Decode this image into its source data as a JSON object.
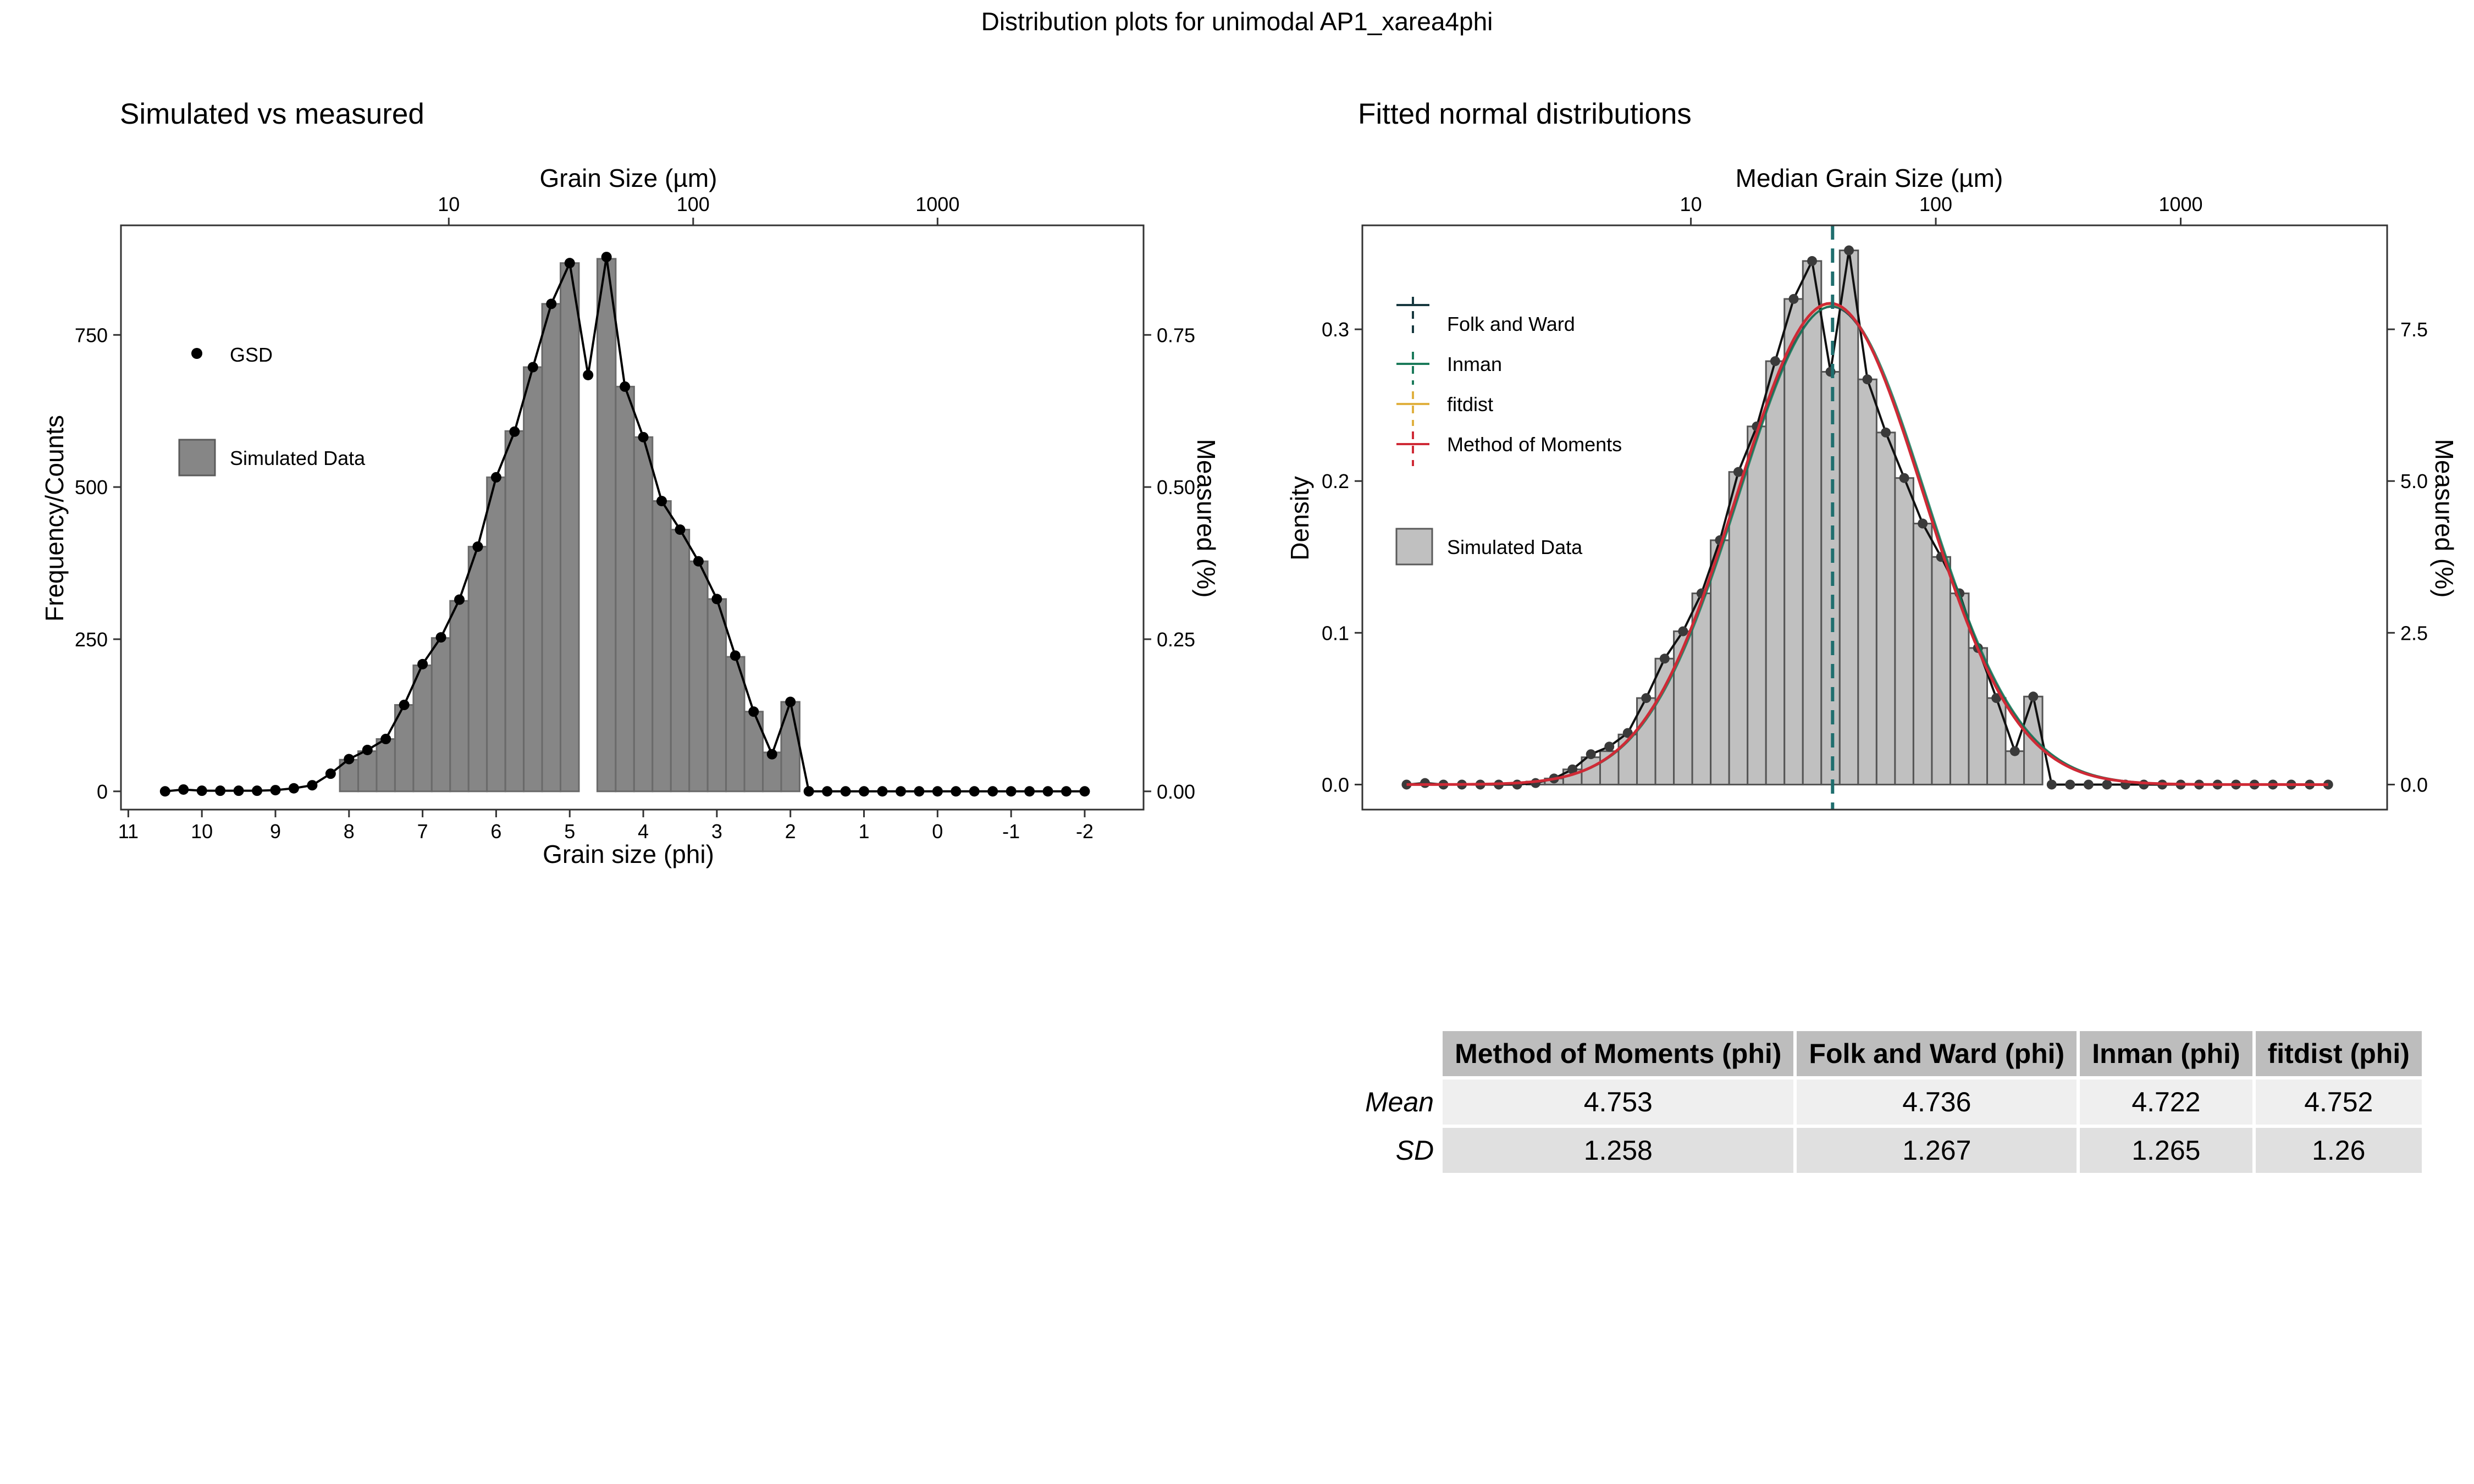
{
  "figure_title": "Distribution plots for unimodal AP1_xarea4phi",
  "chart_data": [
    {
      "type": "bar",
      "subtitle": "Simulated vs measured",
      "xlabel": "Grain size (phi)",
      "top_xlabel": "Grain Size (µm)",
      "ylabel": "Frequency/Counts",
      "right_ylabel": "Measured (%)",
      "x_axis_reversed": true,
      "xlim": [
        11.1,
        -2.8
      ],
      "ylim": [
        -30,
        930
      ],
      "right_ylim": [
        -0.03,
        0.93
      ],
      "x_ticks": [
        "11",
        "10",
        "9",
        "8",
        "7",
        "6",
        "5",
        "4",
        "3",
        "2",
        "1",
        "0",
        "-1",
        "-2"
      ],
      "top_ticks": [
        "10",
        "100",
        "1000"
      ],
      "y_ticks": [
        "0",
        "250",
        "500",
        "750"
      ],
      "right_ticks": [
        "0.00",
        "0.25",
        "0.50",
        "0.75"
      ],
      "legend": [
        {
          "label": "GSD",
          "symbol": "point"
        },
        {
          "label": "Simulated Data",
          "symbol": "box"
        }
      ],
      "bar_fill": "#868686",
      "bars": {
        "centers": [
          8.0,
          7.75,
          7.5,
          7.25,
          7.0,
          6.75,
          6.5,
          6.25,
          6.0,
          5.75,
          5.5,
          5.25,
          5.0,
          4.75,
          4.5,
          4.25,
          4.0,
          3.75,
          3.5,
          3.25,
          3.0,
          2.75,
          2.5,
          2.25,
          2.0
        ],
        "values": [
          52,
          66,
          86,
          142,
          207,
          252,
          313,
          402,
          516,
          592,
          697,
          801,
          868,
          0,
          875,
          665,
          582,
          477,
          430,
          378,
          316,
          221,
          131,
          64,
          147
        ]
      },
      "gsd_points": {
        "x": [
          10.5,
          10.25,
          10.0,
          9.75,
          9.5,
          9.25,
          9.0,
          8.75,
          8.5,
          8.25,
          8.0,
          7.75,
          7.5,
          7.25,
          7.0,
          6.75,
          6.5,
          6.25,
          6.0,
          5.75,
          5.5,
          5.25,
          5.0,
          4.75,
          4.5,
          4.25,
          4.0,
          3.75,
          3.5,
          3.25,
          3.0,
          2.75,
          2.5,
          2.25,
          2.0,
          1.75,
          1.5,
          1.25,
          1.0,
          0.75,
          0.5,
          0.25,
          0.0,
          -0.25,
          -0.5,
          -0.75,
          -1.0,
          -1.25,
          -1.5,
          -1.75,
          -2.0
        ],
        "y": [
          0,
          0.003,
          0.001,
          0.001,
          0.001,
          0.001,
          0.002,
          0.005,
          0.01,
          0.029,
          0.053,
          0.068,
          0.086,
          0.142,
          0.209,
          0.253,
          0.315,
          0.402,
          0.516,
          0.591,
          0.697,
          0.801,
          0.868,
          0.684,
          0.878,
          0.665,
          0.582,
          0.477,
          0.43,
          0.378,
          0.316,
          0.223,
          0.131,
          0.061,
          0.147,
          0,
          0,
          0,
          0,
          0,
          0,
          0,
          0,
          0,
          0,
          0,
          0,
          0,
          0,
          0,
          0
        ]
      }
    },
    {
      "type": "bar",
      "subtitle": "Fitted normal distributions",
      "top_xlabel": "Median Grain Size (µm)",
      "ylabel": "Density",
      "right_ylabel": "Measured (%)",
      "x_axis_reversed": true,
      "xlim": [
        11.1,
        -2.8
      ],
      "ylim": [
        -0.0165,
        0.3685
      ],
      "right_ylim": [
        -0.4125,
        9.2125
      ],
      "top_ticks": [
        "10",
        "100",
        "1000"
      ],
      "y_ticks": [
        "0.0",
        "0.1",
        "0.2",
        "0.3"
      ],
      "right_ticks": [
        "0.0",
        "2.5",
        "5.0",
        "7.5"
      ],
      "legend": [
        {
          "label": "Folk and Ward",
          "color": "#17383f"
        },
        {
          "label": "Inman",
          "color": "#1b7a5a"
        },
        {
          "label": "fitdist",
          "color": "#e0b040"
        },
        {
          "label": "Method of Moments",
          "color": "#cf2a36"
        },
        {
          "label": "Simulated Data",
          "symbol": "box"
        }
      ],
      "bar_fill": "#c0c0c0",
      "bars": {
        "centers": [
          8.75,
          8.5,
          8.25,
          8.0,
          7.75,
          7.5,
          7.25,
          7.0,
          6.75,
          6.5,
          6.25,
          6.0,
          5.75,
          5.5,
          5.25,
          5.0,
          4.75,
          4.5,
          4.25,
          4.0,
          3.75,
          3.5,
          3.25,
          3.0,
          2.75,
          2.5,
          2.25,
          2.0
        ],
        "values": [
          0.002,
          0.004,
          0.01,
          0.018,
          0.022,
          0.033,
          0.057,
          0.083,
          0.101,
          0.126,
          0.161,
          0.206,
          0.236,
          0.279,
          0.32,
          0.345,
          0.272,
          0.352,
          0.267,
          0.232,
          0.202,
          0.172,
          0.15,
          0.126,
          0.09,
          0.057,
          0.022,
          0.058
        ]
      },
      "gsd_points": {
        "x": [
          10.5,
          10.25,
          10.0,
          9.75,
          9.5,
          9.25,
          9.0,
          8.75,
          8.5,
          8.25,
          8.0,
          7.75,
          7.5,
          7.25,
          7.0,
          6.75,
          6.5,
          6.25,
          6.0,
          5.75,
          5.5,
          5.25,
          5.0,
          4.75,
          4.5,
          4.25,
          4.0,
          3.75,
          3.5,
          3.25,
          3.0,
          2.75,
          2.5,
          2.25,
          2.0,
          1.75,
          1.5,
          1.25,
          1.0,
          0.75,
          0.5,
          0.25,
          0.0,
          -0.25,
          -0.5,
          -0.75,
          -1.0,
          -1.25,
          -1.5,
          -1.75,
          -2.0
        ],
        "y": [
          0,
          0.001,
          0,
          0,
          0,
          0,
          0,
          0.001,
          0.004,
          0.01,
          0.02,
          0.025,
          0.034,
          0.057,
          0.083,
          0.101,
          0.126,
          0.161,
          0.206,
          0.236,
          0.279,
          0.32,
          0.345,
          0.272,
          0.352,
          0.267,
          0.232,
          0.202,
          0.172,
          0.15,
          0.126,
          0.09,
          0.057,
          0.022,
          0.058,
          0,
          0,
          0,
          0,
          0,
          0,
          0,
          0,
          0,
          0,
          0,
          0,
          0,
          0,
          0,
          0
        ]
      },
      "normal_fits": [
        {
          "name": "Folk and Ward",
          "mean": 4.736,
          "sd": 1.267,
          "color": "#17383f"
        },
        {
          "name": "Inman",
          "mean": 4.722,
          "sd": 1.265,
          "color": "#1b7a5a"
        },
        {
          "name": "fitdist",
          "mean": 4.752,
          "sd": 1.26,
          "color": "#e0b040"
        },
        {
          "name": "Method of Moments",
          "mean": 4.753,
          "sd": 1.258,
          "color": "#cf2a36"
        }
      ],
      "median_line_phi": 4.722
    }
  ],
  "table": {
    "headers": [
      "Method of Moments (phi)",
      "Folk and Ward (phi)",
      "Inman (phi)",
      "fitdist (phi)"
    ],
    "rows": [
      {
        "label": "Mean",
        "values": [
          "4.753",
          "4.736",
          "4.722",
          "4.752"
        ]
      },
      {
        "label": "SD",
        "values": [
          "1.258",
          "1.267",
          "1.265",
          "1.26"
        ]
      }
    ]
  }
}
